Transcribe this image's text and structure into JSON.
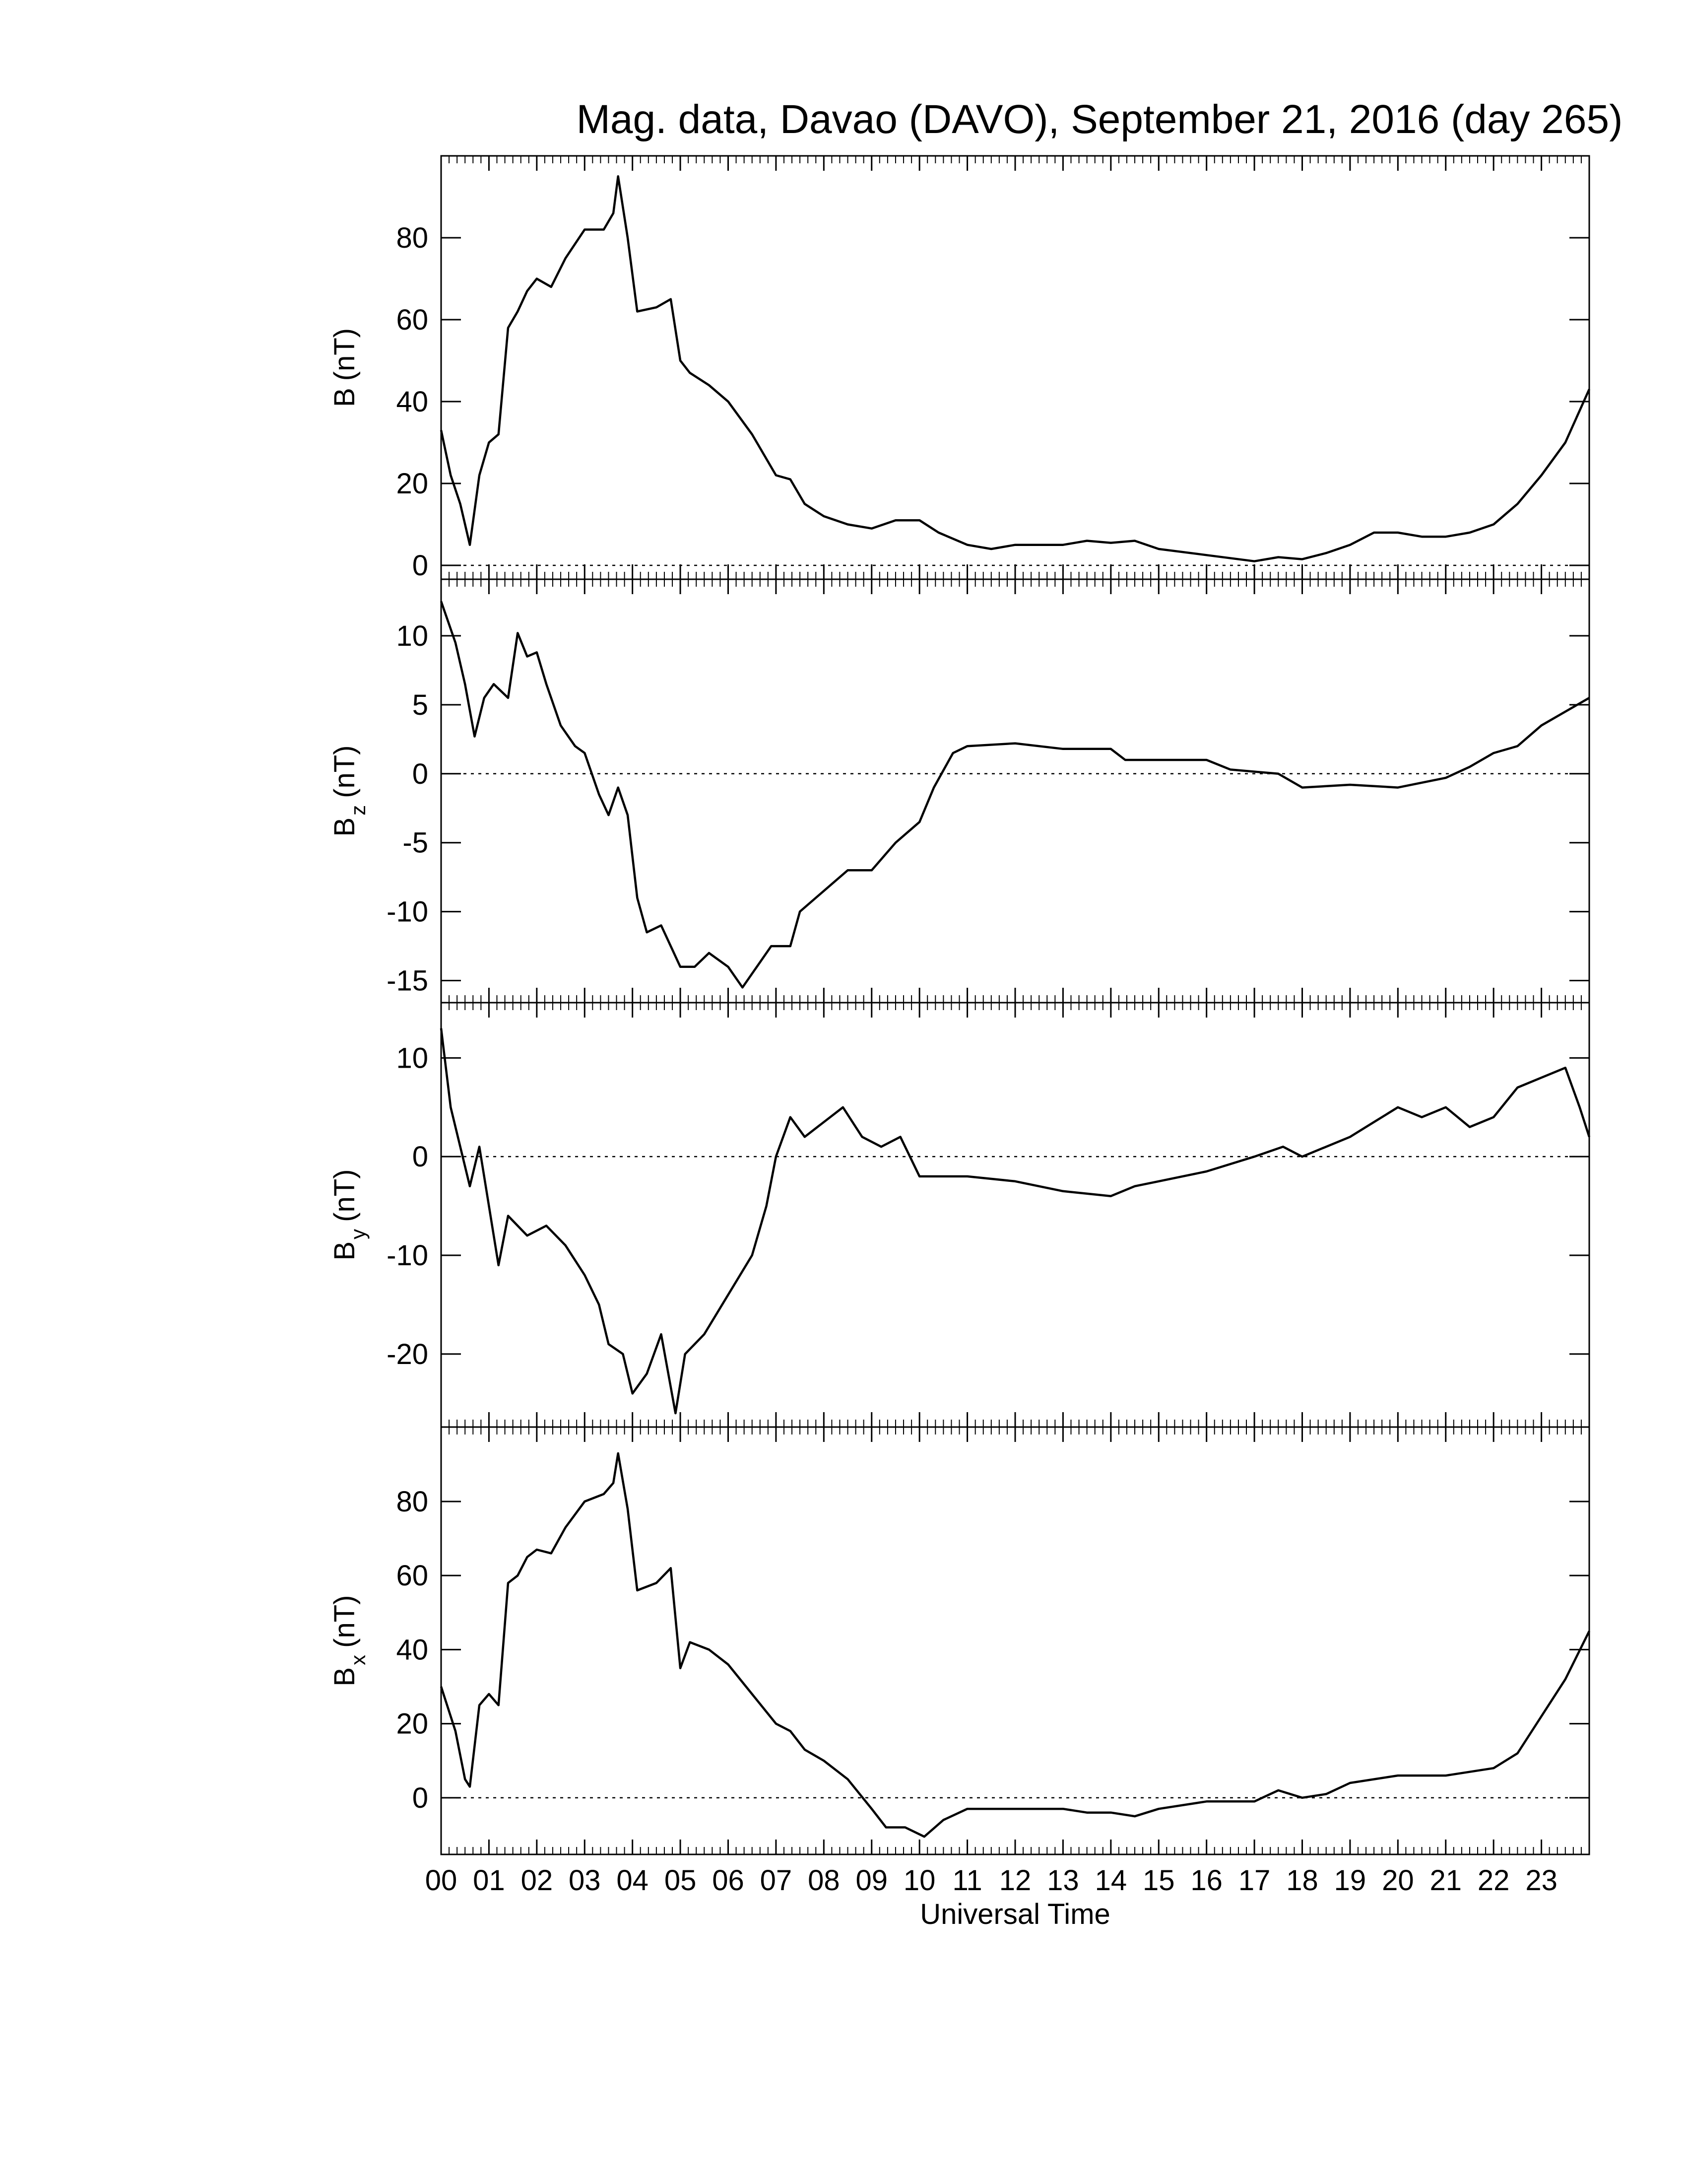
{
  "chart_data": [
    {
      "type": "line",
      "title": "Mag. data, Davao (DAVO), September 21, 2016 (day 265)",
      "ylabel": [
        "B",
        "(nT)"
      ],
      "xlim": [
        0,
        24
      ],
      "ylim": [
        -3.4,
        100
      ],
      "yticks": [
        0,
        20,
        40,
        60,
        80
      ],
      "zero_line": true,
      "x": [
        0,
        0.2,
        0.4,
        0.6,
        0.8,
        1.0,
        1.2,
        1.4,
        1.6,
        1.8,
        2.0,
        2.3,
        2.6,
        3.0,
        3.4,
        3.6,
        3.7,
        3.9,
        4.1,
        4.5,
        4.8,
        5.0,
        5.2,
        5.6,
        6.0,
        6.5,
        7.0,
        7.3,
        7.6,
        8.0,
        8.5,
        9.0,
        9.5,
        10.0,
        10.4,
        11.0,
        11.5,
        12,
        13,
        13.5,
        14,
        14.5,
        15,
        16,
        17,
        17.5,
        18,
        18.5,
        19,
        19.5,
        20,
        20.5,
        21,
        21.5,
        22,
        22.5,
        23,
        23.5,
        24
      ],
      "series": [
        {
          "color": "#000000",
          "values": [
            33,
            22,
            15,
            5,
            22,
            30,
            32,
            58,
            62,
            67,
            70,
            68,
            75,
            82,
            82,
            86,
            95,
            80,
            62,
            63,
            65,
            50,
            47,
            44,
            40,
            32,
            22,
            21,
            15,
            12,
            10,
            9,
            11,
            11,
            8,
            5,
            4,
            5,
            5,
            6,
            5.5,
            6,
            4,
            2.5,
            1,
            2,
            1.5,
            3,
            5,
            8,
            8,
            7,
            7,
            8,
            10,
            15,
            22,
            30,
            43
          ]
        }
      ]
    },
    {
      "type": "line",
      "ylabel": [
        "B",
        "z",
        "(nT)"
      ],
      "xlim": [
        0,
        24
      ],
      "ylim": [
        -16.6,
        14.1
      ],
      "yticks": [
        -15,
        -10,
        -5,
        0,
        5,
        10
      ],
      "zero_line": true,
      "x": [
        0,
        0.3,
        0.5,
        0.7,
        0.9,
        1.1,
        1.4,
        1.6,
        1.8,
        2.0,
        2.2,
        2.5,
        2.8,
        3.0,
        3.3,
        3.5,
        3.7,
        3.9,
        4.1,
        4.3,
        4.6,
        5.0,
        5.3,
        5.6,
        6.0,
        6.3,
        6.6,
        6.9,
        7.3,
        7.5,
        8.0,
        8.5,
        9.0,
        9.5,
        10.0,
        10.3,
        10.7,
        11.0,
        12,
        13,
        14,
        14.3,
        15,
        16,
        16.5,
        17.5,
        18,
        19,
        20,
        21,
        21.5,
        22,
        22.5,
        23,
        23.5,
        24
      ],
      "series": [
        {
          "color": "#000000",
          "values": [
            12.5,
            9.5,
            6.5,
            2.7,
            5.5,
            6.5,
            5.5,
            10.2,
            8.5,
            8.8,
            6.5,
            3.5,
            2,
            1.5,
            -1.5,
            -3,
            -1,
            -3,
            -9,
            -11.5,
            -11,
            -14,
            -14,
            -13,
            -14,
            -15.5,
            -14,
            -12.5,
            -12.5,
            -10,
            -8.5,
            -7,
            -7,
            -5,
            -3.5,
            -1,
            1.5,
            2,
            2.2,
            1.8,
            1.8,
            1,
            1,
            1,
            0.3,
            0,
            -1,
            -0.8,
            -1,
            -0.3,
            0.5,
            1.5,
            2,
            3.5,
            4.5,
            5.5
          ]
        }
      ]
    },
    {
      "type": "line",
      "ylabel": [
        "B",
        "y",
        "(nT)"
      ],
      "xlim": [
        0,
        24
      ],
      "ylim": [
        -27.4,
        15.6
      ],
      "yticks": [
        -20,
        -10,
        0,
        10
      ],
      "zero_line": true,
      "x": [
        0,
        0.2,
        0.4,
        0.6,
        0.8,
        1.0,
        1.2,
        1.4,
        1.8,
        2.2,
        2.6,
        3.0,
        3.3,
        3.5,
        3.8,
        4.0,
        4.3,
        4.6,
        4.9,
        5.1,
        5.5,
        6.0,
        6.5,
        6.8,
        7.0,
        7.3,
        7.6,
        8.0,
        8.4,
        8.8,
        9.2,
        9.6,
        10.0,
        10.5,
        11,
        12,
        13,
        14,
        14.5,
        15,
        16,
        17,
        17.6,
        18,
        19,
        19.5,
        20,
        20.5,
        21,
        21.5,
        22,
        22.5,
        23,
        23.5,
        23.8,
        24
      ],
      "series": [
        {
          "color": "#000000",
          "values": [
            13,
            5,
            1,
            -3,
            1,
            -5,
            -11,
            -6,
            -8,
            -7,
            -9,
            -12,
            -15,
            -19,
            -20,
            -24,
            -22,
            -18,
            -26,
            -20,
            -18,
            -14,
            -10,
            -5,
            0,
            4,
            2,
            3.5,
            5,
            2,
            1,
            2,
            -2,
            -2,
            -2,
            -2.5,
            -3.5,
            -4,
            -3,
            -2.5,
            -1.5,
            0,
            1,
            0,
            2,
            3.5,
            5,
            4,
            5,
            3,
            4,
            7,
            8,
            9,
            5,
            2
          ]
        }
      ]
    },
    {
      "type": "line",
      "ylabel": [
        "B",
        "x",
        "(nT)"
      ],
      "xlabel": "Universal Time",
      "xlim": [
        0,
        24
      ],
      "ylim": [
        -15.3,
        100.1
      ],
      "yticks": [
        0,
        20,
        40,
        60,
        80
      ],
      "zero_line": true,
      "xticks": [
        {
          "value": 0,
          "label": "00"
        },
        {
          "value": 1,
          "label": "01"
        },
        {
          "value": 2,
          "label": "02"
        },
        {
          "value": 3,
          "label": "03"
        },
        {
          "value": 4,
          "label": "04"
        },
        {
          "value": 5,
          "label": "05"
        },
        {
          "value": 6,
          "label": "06"
        },
        {
          "value": 7,
          "label": "07"
        },
        {
          "value": 8,
          "label": "08"
        },
        {
          "value": 9,
          "label": "09"
        },
        10,
        11,
        12,
        13,
        14,
        15,
        16,
        17,
        18,
        19,
        20,
        21,
        22,
        23
      ],
      "x": [
        0,
        0.3,
        0.5,
        0.6,
        0.8,
        1.0,
        1.2,
        1.4,
        1.6,
        1.8,
        2.0,
        2.3,
        2.6,
        3.0,
        3.4,
        3.6,
        3.7,
        3.9,
        4.1,
        4.5,
        4.8,
        5.0,
        5.2,
        5.6,
        6.0,
        6.5,
        7.0,
        7.3,
        7.6,
        8.0,
        8.5,
        9.0,
        9.3,
        9.7,
        10.1,
        10.5,
        11,
        12,
        13,
        13.5,
        14,
        14.5,
        15,
        16,
        17,
        17.5,
        18,
        18.5,
        19,
        20,
        21,
        22,
        22.5,
        23,
        23.5,
        24
      ],
      "series": [
        {
          "color": "#000000",
          "values": [
            30,
            18,
            5,
            3,
            25,
            28,
            25,
            58,
            60,
            65,
            67,
            66,
            73,
            80,
            82,
            85,
            93,
            78,
            56,
            58,
            62,
            35,
            42,
            40,
            36,
            28,
            20,
            18,
            13,
            10,
            5,
            -3,
            -8,
            -8,
            -10.5,
            -6,
            -3,
            -3,
            -3,
            -4,
            -4,
            -5,
            -3,
            -1,
            -1,
            2,
            0,
            1,
            4,
            6,
            6,
            8,
            12,
            22,
            32,
            45
          ]
        }
      ]
    }
  ]
}
